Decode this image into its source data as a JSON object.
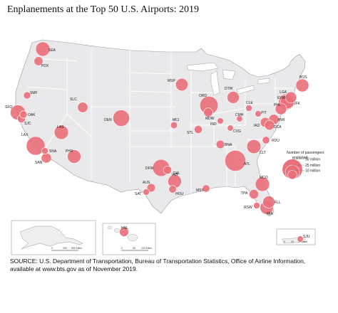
{
  "title": "Enplanements at the Top 50 U.S. Airports: 2019",
  "colors": {
    "bubble_fill": "#ea6f7a",
    "bubble_stroke": "#ffffff",
    "land": "#e9e9ec",
    "land_inset": "#eeeeef",
    "water": "#ffffff",
    "state_border": "#ffffff",
    "neighbor_land": "#ffffff",
    "outline": "#9a9aa2"
  },
  "legend": {
    "title_line1": "Number of passengers",
    "title_line2": "enplaned",
    "items": [
      {
        "label": "50 million",
        "value_millions": 50
      },
      {
        "label": "25 million",
        "value_millions": 25
      },
      {
        "label": "10 million",
        "value_millions": 10
      }
    ]
  },
  "scale_bars": {
    "alaska": {
      "label_left": "0",
      "label_mid": "250",
      "label_right": "500 Miles"
    },
    "hawaii": {
      "label_left": "0",
      "label_mid": "50",
      "label_right": "100 Miles"
    },
    "puerto_rico": {
      "label_left": "0",
      "label_mid": "25",
      "label_right": "50 Miles"
    }
  },
  "airports": [
    {
      "code": "SEA",
      "enplanements_millions": 25.0
    },
    {
      "code": "PDX",
      "enplanements_millions": 9.8
    },
    {
      "code": "SMF",
      "enplanements_millions": 6.4
    },
    {
      "code": "SFO",
      "enplanements_millions": 27.8
    },
    {
      "code": "OAK",
      "enplanements_millions": 6.6
    },
    {
      "code": "SJC",
      "enplanements_millions": 7.7
    },
    {
      "code": "LAX",
      "enplanements_millions": 42.9
    },
    {
      "code": "SNA",
      "enplanements_millions": 5.3
    },
    {
      "code": "SAN",
      "enplanements_millions": 12.6
    },
    {
      "code": "LAS",
      "enplanements_millions": 24.7
    },
    {
      "code": "PHX",
      "enplanements_millions": 22.4
    },
    {
      "code": "SLC",
      "enplanements_millions": 13.2
    },
    {
      "code": "DEN",
      "enplanements_millions": 33.6
    },
    {
      "code": "MSP",
      "enplanements_millions": 19.2
    },
    {
      "code": "MCI",
      "enplanements_millions": 5.8
    },
    {
      "code": "STL",
      "enplanements_millions": 7.9
    },
    {
      "code": "ORD",
      "enplanements_millions": 40.9
    },
    {
      "code": "MDW",
      "enplanements_millions": 10.0
    },
    {
      "code": "DTW",
      "enplanements_millions": 18.1
    },
    {
      "code": "IND",
      "enplanements_millions": 4.9
    },
    {
      "code": "CVG",
      "enplanements_millions": 4.5
    },
    {
      "code": "CMH",
      "enplanements_millions": 4.5
    },
    {
      "code": "CLE",
      "enplanements_millions": 5.0
    },
    {
      "code": "PIT",
      "enplanements_millions": 4.8
    },
    {
      "code": "BNA",
      "enplanements_millions": 8.6
    },
    {
      "code": "DFW",
      "enplanements_millions": 35.8
    },
    {
      "code": "DAL",
      "enplanements_millions": 8.2
    },
    {
      "code": "AUS",
      "enplanements_millions": 8.6
    },
    {
      "code": "SAT",
      "enplanements_millions": 5.1
    },
    {
      "code": "IAH",
      "enplanements_millions": 22.8
    },
    {
      "code": "HOU",
      "enplanements_millions": 7.1
    },
    {
      "code": "MSY",
      "enplanements_millions": 6.8
    },
    {
      "code": "ATL",
      "enplanements_millions": 53.5
    },
    {
      "code": "CLT",
      "enplanements_millions": 24.3
    },
    {
      "code": "RDU",
      "enplanements_millions": 6.7
    },
    {
      "code": "IAD",
      "enplanements_millions": 11.8
    },
    {
      "code": "DCA",
      "enplanements_millions": 11.8
    },
    {
      "code": "BWI",
      "enplanements_millions": 13.3
    },
    {
      "code": "PHL",
      "enplanements_millions": 16.0
    },
    {
      "code": "EWR",
      "enplanements_millions": 23.2
    },
    {
      "code": "LGA",
      "enplanements_millions": 15.6
    },
    {
      "code": "JFK",
      "enplanements_millions": 31.0
    },
    {
      "code": "BOS",
      "enplanements_millions": 20.7
    },
    {
      "code": "MCO",
      "enplanements_millions": 25.0
    },
    {
      "code": "TPA",
      "enplanements_millions": 11.0
    },
    {
      "code": "RSW",
      "enplanements_millions": 5.1
    },
    {
      "code": "FLL",
      "enplanements_millions": 18.0
    },
    {
      "code": "MIA",
      "enplanements_millions": 21.4
    },
    {
      "code": "HNL",
      "enplanements_millions": 10.6
    },
    {
      "code": "SJU",
      "enplanements_millions": 4.8
    }
  ],
  "source_note": "SOURCE: U.S. Department of Transportation, Bureau of Transportation Statistics, Office of Airline Information, available at www.bts.gov as of November 2019."
}
